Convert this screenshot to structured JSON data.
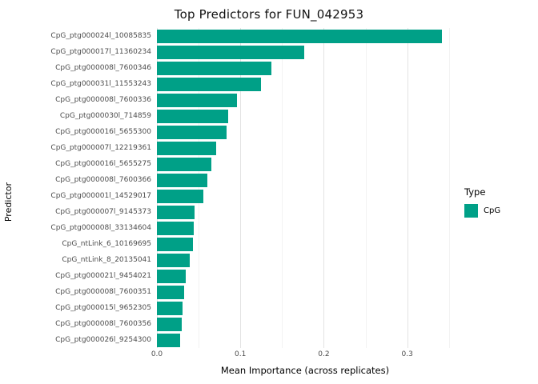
{
  "title": "Top Predictors for FUN_042953",
  "chart_data": {
    "type": "bar",
    "orientation": "horizontal",
    "title": "Top Predictors for FUN_042953",
    "xlabel": "Mean Importance (across replicates)",
    "ylabel": "Predictor",
    "xlim": [
      0,
      0.355
    ],
    "x_ticks": [
      0.0,
      0.1,
      0.2,
      0.3
    ],
    "x_tick_labels": [
      "0.0",
      "0.1",
      "0.2",
      "0.3"
    ],
    "x_minor_ticks": [
      0.05,
      0.15,
      0.25,
      0.35
    ],
    "grid": true,
    "bar_color": "#00A087",
    "categories": [
      "CpG_ptg000024l_10085835",
      "CpG_ptg000017l_11360234",
      "CpG_ptg000008l_7600346",
      "CpG_ptg000031l_11553243",
      "CpG_ptg000008l_7600336",
      "CpG_ptg000030l_714859",
      "CpG_ptg000016l_5655300",
      "CpG_ptg000007l_12219361",
      "CpG_ptg000016l_5655275",
      "CpG_ptg000008l_7600366",
      "CpG_ptg000001l_14529017",
      "CpG_ptg000007l_9145373",
      "CpG_ptg000008l_33134604",
      "CpG_ntLink_6_10169695",
      "CpG_ntLink_8_20135041",
      "CpG_ptg000021l_9454021",
      "CpG_ptg000008l_7600351",
      "CpG_ptg000015l_9652305",
      "CpG_ptg000008l_7600356",
      "CpG_ptg000026l_9254300"
    ],
    "values": [
      0.342,
      0.177,
      0.137,
      0.125,
      0.096,
      0.085,
      0.083,
      0.071,
      0.065,
      0.06,
      0.056,
      0.045,
      0.044,
      0.043,
      0.039,
      0.035,
      0.033,
      0.031,
      0.03,
      0.028
    ],
    "legend": {
      "title": "Type",
      "position": "right",
      "entries": [
        {
          "label": "CpG",
          "color": "#00A087"
        }
      ]
    }
  }
}
